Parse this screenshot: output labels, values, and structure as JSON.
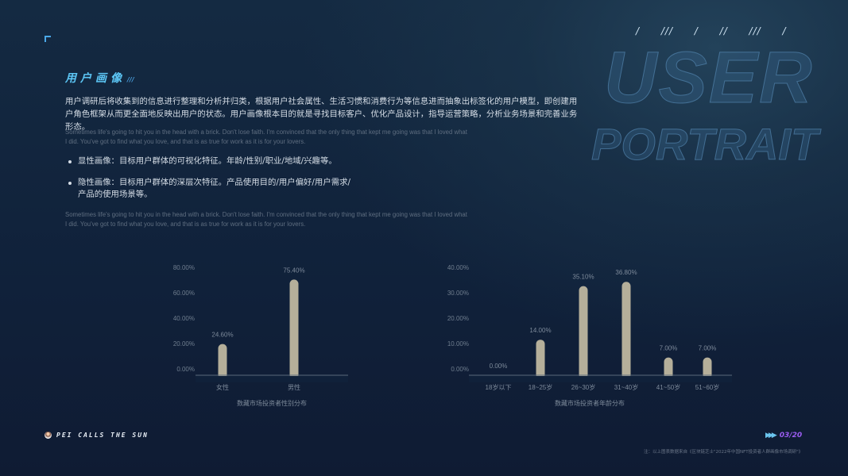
{
  "watermark": {
    "line1": "USER",
    "line2": "PORTRAIT"
  },
  "decor_slashes": "/ /// / // /// /",
  "title": "用户画像",
  "title_suffix": "///",
  "intro": "用户调研后将收集到的信息进行整理和分析并归类，根据用户社会属性、生活习惯和消费行为等信息进而抽象出标签化的用户模型，即创建用户角色框架从而更全面地反映出用户的状态。用户画像根本目的就是寻找目标客户、优化产品设计，指导运营策略，分析业务场景和完善业务形态。",
  "english_1": "Sometimes life's going to hit you in the head with a brick. Don't lose faith. I'm convinced that the only thing that kept me going was that I loved what I did. You've got to find what you love, and that is as true for work as it is for your lovers.",
  "bullets": [
    "显性画像：目标用户群体的可视化特征。年龄/性别/职业/地域/兴趣等。",
    "隐性画像：目标用户群体的深层次特征。产品使用目的/用户偏好/用户需求/产品的使用场景等。"
  ],
  "english_2": "Sometimes life's going to hit you in the head with a brick. Don't lose faith. I'm convinced that the only thing that kept me going was that I loved what I did. You've got to find what you love, and that is as true for work as it is for your lovers.",
  "chart_data": [
    {
      "type": "bar",
      "title": "数藏市场投资者性别分布",
      "categories": [
        "女性",
        "男性"
      ],
      "values": [
        24.6,
        75.4
      ],
      "data_labels": [
        "24.60%",
        "75.40%"
      ],
      "ylim": [
        0,
        80
      ],
      "yticks": [
        "0.00%",
        "20.00%",
        "40.00%",
        "60.00%",
        "80.00%"
      ],
      "bar_color": "#b5af9a",
      "grid": false
    },
    {
      "type": "bar",
      "title": "数藏市场投资者年龄分布",
      "categories": [
        "18岁以下",
        "18~25岁",
        "26~30岁",
        "31~40岁",
        "41~50岁",
        "51~60岁"
      ],
      "values": [
        0,
        14,
        35.1,
        36.8,
        7,
        7
      ],
      "data_labels": [
        "0.00%",
        "14.00%",
        "35.10%",
        "36.80%",
        "7.00%",
        "7.00%"
      ],
      "ylim": [
        0,
        40
      ],
      "yticks": [
        "0.00%",
        "10.00%",
        "20.00%",
        "30.00%",
        "40.00%"
      ],
      "bar_color": "#b5af9a",
      "grid": false
    }
  ],
  "footer": {
    "brand": "PEI CALLS THE SUN",
    "page": "03/20",
    "note": "注：以上图表数据来自《区块链芝士\"2022年中国NFT投资者人群画像市场调研\"》"
  }
}
